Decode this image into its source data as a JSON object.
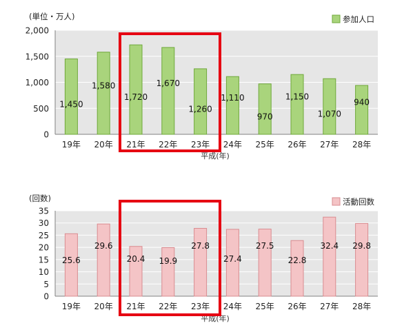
{
  "colors": {
    "plot_bg": "#e6e6e6",
    "grid": "#ffffff",
    "axis": "#808080",
    "highlight": "#e60012"
  },
  "chart_data": [
    {
      "type": "bar",
      "unit_label": "(単位・万人)",
      "legend": "参加人口",
      "legend_position": "top-right",
      "categories": [
        "19年",
        "20年",
        "21年",
        "22年",
        "23年",
        "24年",
        "25年",
        "26年",
        "27年",
        "28年"
      ],
      "series": [
        {
          "name": "参加人口",
          "values": [
            1450,
            1580,
            1720,
            1670,
            1260,
            1110,
            970,
            1150,
            1070,
            940
          ]
        }
      ],
      "data_labels": [
        "1,450",
        "1,580",
        "1,720",
        "1,670",
        "1,260",
        "1,110",
        "970",
        "1,150",
        "1,070",
        "940"
      ],
      "yticks": [
        "0",
        "500",
        "1,000",
        "1,500",
        "2,000"
      ],
      "ytick_values": [
        0,
        500,
        1000,
        1500,
        2000
      ],
      "ylim": [
        0,
        2000
      ],
      "xlabel": "平成(年)",
      "bar_color": "#a9d47c",
      "bar_edge": "#6fa83a",
      "grid": true,
      "highlighted_categories": [
        "21年",
        "22年",
        "23年"
      ]
    },
    {
      "type": "bar",
      "unit_label": "(回数)",
      "legend": "活動回数",
      "legend_position": "top-right",
      "categories": [
        "19年",
        "20年",
        "21年",
        "22年",
        "23年",
        "24年",
        "25年",
        "26年",
        "27年",
        "28年"
      ],
      "series": [
        {
          "name": "活動回数",
          "values": [
            25.6,
            29.6,
            20.4,
            19.9,
            27.8,
            27.4,
            27.5,
            22.8,
            32.4,
            29.8
          ]
        }
      ],
      "data_labels": [
        "25.6",
        "29.6",
        "20.4",
        "19.9",
        "27.8",
        "27.4",
        "27.5",
        "22.8",
        "32.4",
        "29.8"
      ],
      "yticks": [
        "0",
        "5",
        "10",
        "15",
        "20",
        "25",
        "30",
        "35"
      ],
      "ytick_values": [
        0,
        5,
        10,
        15,
        20,
        25,
        30,
        35
      ],
      "ylim": [
        0,
        35
      ],
      "xlabel": "平成(年)",
      "bar_color": "#f4c4c6",
      "bar_edge": "#d98c90",
      "grid": true,
      "highlighted_categories": [
        "21年",
        "22年",
        "23年"
      ]
    }
  ]
}
